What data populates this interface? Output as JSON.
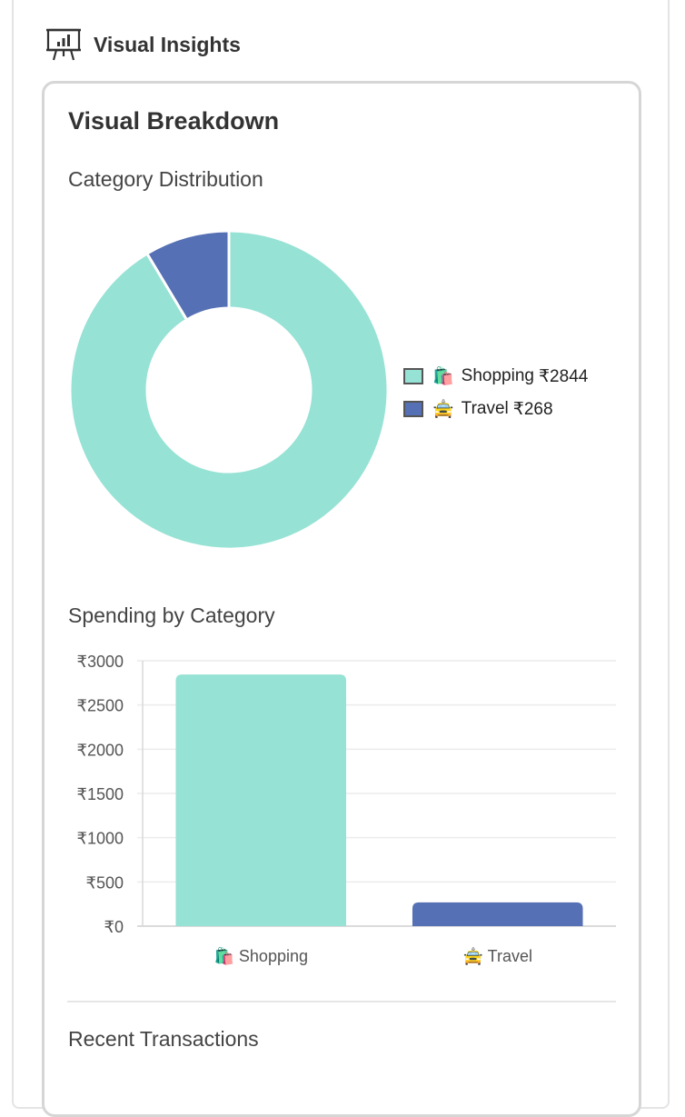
{
  "section": {
    "title": "Visual Insights",
    "icon": "presentation-chart-icon"
  },
  "card": {
    "title": "Visual Breakdown",
    "donut_heading": "Category Distribution",
    "bar_heading": "Spending by Category",
    "transactions_heading": "Recent Transactions"
  },
  "colors": {
    "teal": "#96e2d4",
    "blue": "#5670b5",
    "border": "#d6d6d6"
  },
  "chart_data": [
    {
      "type": "pie",
      "variant": "doughnut",
      "labels": [
        "🛍️ Shopping",
        "🚖 Travel"
      ],
      "values": [
        2844,
        268
      ],
      "legend_position": "right",
      "legend": [
        {
          "emoji": "🛍️",
          "label": "Shopping",
          "amount": "₹2844",
          "color": "#96e2d4"
        },
        {
          "emoji": "🚖",
          "label": "Travel",
          "amount": "₹268",
          "color": "#5670b5"
        }
      ]
    },
    {
      "type": "bar",
      "categories": [
        "🛍️ Shopping",
        "🚖 Travel"
      ],
      "values": [
        2844,
        268
      ],
      "colors": [
        "#96e2d4",
        "#5670b5"
      ],
      "ylim": [
        0,
        3000
      ],
      "yticks": [
        "₹0",
        "₹500",
        "₹1000",
        "₹1500",
        "₹2000",
        "₹2500",
        "₹3000"
      ],
      "grid": true
    }
  ]
}
